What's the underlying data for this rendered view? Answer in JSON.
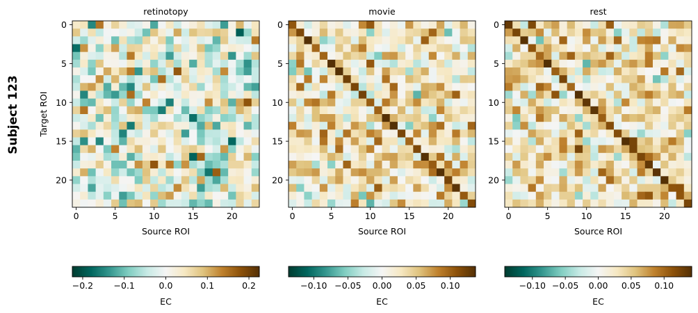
{
  "figure": {
    "suptitle": "Subject 123",
    "colormap": "BrBG_r",
    "accent_colors": {
      "neg": "#003c30",
      "zero": "#f5f5f5",
      "pos": "#543005"
    }
  },
  "chart_data": [
    {
      "type": "heatmap",
      "title": "retinotopy",
      "xlabel": "Source ROI",
      "ylabel": "Target ROI",
      "n": 24,
      "xticks": [
        0,
        5,
        10,
        15,
        20
      ],
      "yticks": [
        0,
        5,
        10,
        15,
        20
      ],
      "seed": 7,
      "value_range": [
        -0.22,
        0.22
      ],
      "diagonal_boost": 0.0,
      "matrix": [],
      "colorbar": {
        "label": "EC",
        "ticks": [
          -0.2,
          -0.1,
          0.0,
          0.1,
          0.2
        ],
        "tick_labels": [
          "−0.2",
          "−0.1",
          "0.0",
          "0.1",
          "0.2"
        ],
        "vmin": -0.225,
        "vmax": 0.225
      }
    },
    {
      "type": "heatmap",
      "title": "movie",
      "xlabel": "Source ROI",
      "ylabel": "",
      "n": 24,
      "xticks": [
        0,
        5,
        10,
        15,
        20
      ],
      "yticks": [
        0,
        5,
        10,
        15,
        20
      ],
      "seed": 19,
      "value_range": [
        -0.09,
        0.14
      ],
      "diagonal_boost": 0.09,
      "matrix": [],
      "colorbar": {
        "label": "EC",
        "ticks": [
          -0.1,
          -0.05,
          0.0,
          0.05,
          0.1
        ],
        "tick_labels": [
          "−0.10",
          "−0.05",
          "0.00",
          "0.05",
          "0.10"
        ],
        "vmin": -0.137,
        "vmax": 0.137
      }
    },
    {
      "type": "heatmap",
      "title": "rest",
      "xlabel": "Source ROI",
      "ylabel": "",
      "n": 24,
      "xticks": [
        0,
        5,
        10,
        15,
        20
      ],
      "yticks": [
        0,
        5,
        10,
        15,
        20
      ],
      "seed": 31,
      "value_range": [
        -0.08,
        0.14
      ],
      "diagonal_boost": 0.1,
      "matrix": [],
      "colorbar": {
        "label": "EC",
        "ticks": [
          -0.1,
          -0.05,
          0.0,
          0.05,
          0.1
        ],
        "tick_labels": [
          "−0.10",
          "−0.05",
          "0.00",
          "0.05",
          "0.10"
        ],
        "vmin": -0.142,
        "vmax": 0.142
      }
    }
  ]
}
